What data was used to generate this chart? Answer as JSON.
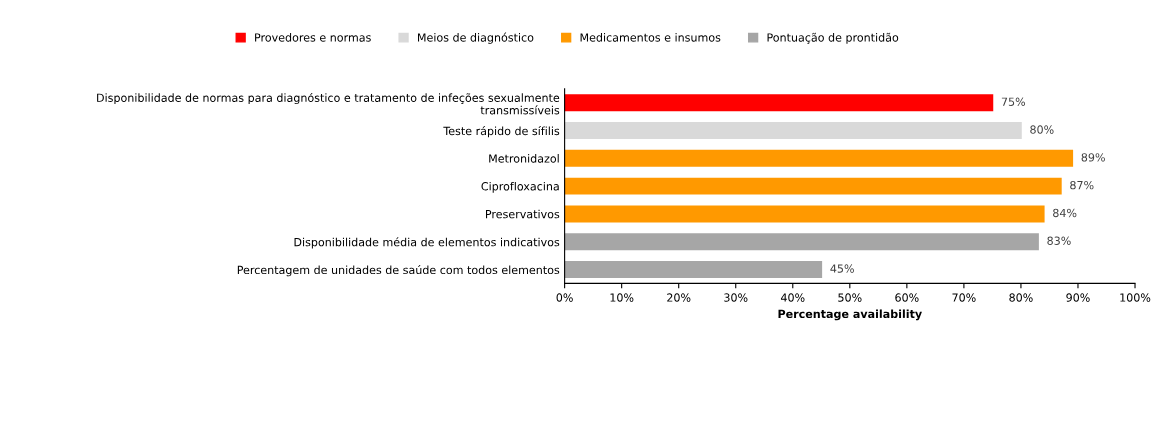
{
  "chart_data": {
    "type": "bar",
    "orientation": "horizontal",
    "xlabel": "Percentage availability",
    "categories": [
      "Disponibilidade de normas para diagnóstico e tratamento de infeções sexualmente\ntransmissíveis",
      "Teste rápido de sífilis",
      "Metronidazol",
      "Ciprofloxacina",
      "Preservativos",
      "Disponibilidade média de elementos indicativos",
      "Percentagem de unidades de saúde com todos elementos"
    ],
    "series": [
      {
        "name": "Provedores e normas",
        "color": "#ff0000",
        "values": [
          75,
          null,
          null,
          null,
          null,
          null,
          null
        ],
        "value_labels": [
          "75%",
          null,
          null,
          null,
          null,
          null,
          null
        ]
      },
      {
        "name": "Meios de diagnóstico",
        "color": "#d9d9d9",
        "values": [
          null,
          80,
          null,
          null,
          null,
          null,
          null
        ],
        "value_labels": [
          null,
          "80%",
          null,
          null,
          null,
          null,
          null
        ]
      },
      {
        "name": "Medicamentos e insumos",
        "color": "#ff9900",
        "values": [
          null,
          null,
          89,
          87,
          84,
          null,
          null
        ],
        "value_labels": [
          null,
          null,
          "89%",
          "87%",
          "84%",
          null,
          null
        ]
      },
      {
        "name": "Pontuação de prontidão",
        "color": "#a6a6a6",
        "values": [
          null,
          null,
          null,
          null,
          null,
          83,
          45
        ],
        "value_labels": [
          null,
          null,
          null,
          null,
          null,
          "83%",
          "45%"
        ]
      }
    ],
    "xlim": [
      0,
      100
    ],
    "xticks": [
      {
        "value": 0,
        "label": "0%"
      },
      {
        "value": 10,
        "label": "10%"
      },
      {
        "value": 20,
        "label": "20%"
      },
      {
        "value": 30,
        "label": "30%"
      },
      {
        "value": 40,
        "label": "40%"
      },
      {
        "value": 50,
        "label": "50%"
      },
      {
        "value": 60,
        "label": "60%"
      },
      {
        "value": 70,
        "label": "70%"
      },
      {
        "value": 80,
        "label": "80%"
      },
      {
        "value": 90,
        "label": "90%"
      },
      {
        "value": 100,
        "label": "100%"
      }
    ],
    "grid": false,
    "legend": "top"
  }
}
